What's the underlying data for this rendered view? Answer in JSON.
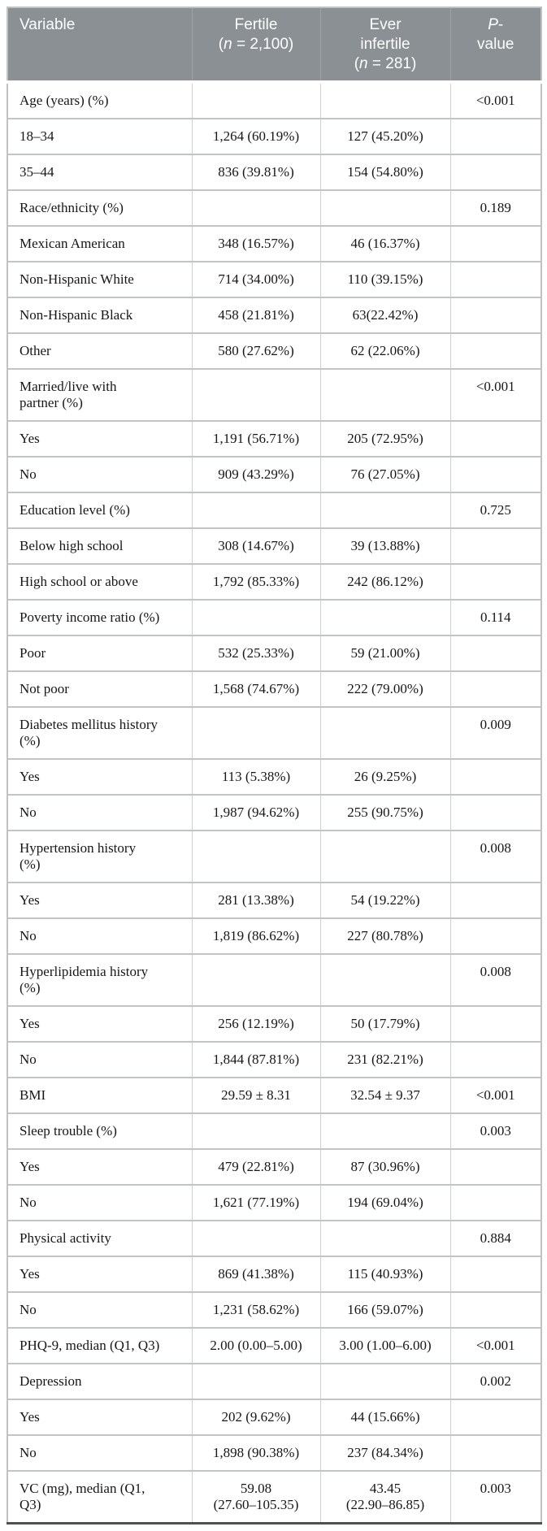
{
  "colors": {
    "header_bg": "#8b9094",
    "header_text": "#ffffff",
    "body_text": "#161616",
    "row_border": "#c2c5c7",
    "col_border": "#ced1d3",
    "outer_border": "#bfc2c4",
    "bottom_rule": "#4d5154"
  },
  "header": {
    "variable": "Variable",
    "fertile": {
      "name": "Fertile",
      "n_open": "(",
      "n_symbol": "n",
      "n_rest": " = 2,100)"
    },
    "ever_infertile": {
      "name_line1": "Ever",
      "name_line2": "infertile",
      "n_open": "(",
      "n_symbol": "n",
      "n_rest": " = 281)"
    },
    "p_value": {
      "p_symbol": "P",
      "hyphen": "-",
      "rest": "value"
    }
  },
  "table": {
    "rows": [
      {
        "variable": "Age (years) (%)",
        "fertile": "",
        "infertile": "",
        "p": "<0.001"
      },
      {
        "variable": "18–34",
        "fertile": "1,264 (60.19%)",
        "infertile": "127 (45.20%)",
        "p": ""
      },
      {
        "variable": "35–44",
        "fertile": "836 (39.81%)",
        "infertile": "154 (54.80%)",
        "p": ""
      },
      {
        "variable": "Race/ethnicity (%)",
        "fertile": "",
        "infertile": "",
        "p": "0.189"
      },
      {
        "variable": "Mexican American",
        "fertile": "348 (16.57%)",
        "infertile": "46 (16.37%)",
        "p": ""
      },
      {
        "variable": "Non-Hispanic White",
        "fertile": "714 (34.00%)",
        "infertile": "110 (39.15%)",
        "p": ""
      },
      {
        "variable": "Non-Hispanic Black",
        "fertile": "458 (21.81%)",
        "infertile": "63(22.42%)",
        "p": ""
      },
      {
        "variable": "Other",
        "fertile": "580 (27.62%)",
        "infertile": "62 (22.06%)",
        "p": ""
      },
      {
        "variable": "Married/live with\npartner (%)",
        "fertile": "",
        "infertile": "",
        "p": "<0.001"
      },
      {
        "variable": "Yes",
        "fertile": "1,191 (56.71%)",
        "infertile": "205 (72.95%)",
        "p": ""
      },
      {
        "variable": "No",
        "fertile": "909 (43.29%)",
        "infertile": "76 (27.05%)",
        "p": ""
      },
      {
        "variable": "Education level (%)",
        "fertile": "",
        "infertile": "",
        "p": "0.725"
      },
      {
        "variable": "Below high school",
        "fertile": "308 (14.67%)",
        "infertile": "39 (13.88%)",
        "p": ""
      },
      {
        "variable": "High school or above",
        "fertile": "1,792 (85.33%)",
        "infertile": "242 (86.12%)",
        "p": ""
      },
      {
        "variable": "Poverty income ratio (%)",
        "fertile": "",
        "infertile": "",
        "p": "0.114"
      },
      {
        "variable": "Poor",
        "fertile": "532 (25.33%)",
        "infertile": "59 (21.00%)",
        "p": ""
      },
      {
        "variable": "Not poor",
        "fertile": "1,568 (74.67%)",
        "infertile": "222 (79.00%)",
        "p": ""
      },
      {
        "variable": "Diabetes mellitus history\n(%)",
        "fertile": "",
        "infertile": "",
        "p": "0.009"
      },
      {
        "variable": "Yes",
        "fertile": "113 (5.38%)",
        "infertile": "26 (9.25%)",
        "p": ""
      },
      {
        "variable": "No",
        "fertile": "1,987 (94.62%)",
        "infertile": "255 (90.75%)",
        "p": ""
      },
      {
        "variable": "Hypertension history\n(%)",
        "fertile": "",
        "infertile": "",
        "p": "0.008"
      },
      {
        "variable": "Yes",
        "fertile": "281 (13.38%)",
        "infertile": "54 (19.22%)",
        "p": ""
      },
      {
        "variable": "No",
        "fertile": "1,819 (86.62%)",
        "infertile": "227 (80.78%)",
        "p": ""
      },
      {
        "variable": "Hyperlipidemia history\n(%)",
        "fertile": "",
        "infertile": "",
        "p": "0.008"
      },
      {
        "variable": "Yes",
        "fertile": "256 (12.19%)",
        "infertile": "50 (17.79%)",
        "p": ""
      },
      {
        "variable": "No",
        "fertile": "1,844 (87.81%)",
        "infertile": "231 (82.21%)",
        "p": ""
      },
      {
        "variable": "BMI",
        "fertile": "29.59 ± 8.31",
        "infertile": "32.54 ± 9.37",
        "p": "<0.001"
      },
      {
        "variable": "Sleep trouble (%)",
        "fertile": "",
        "infertile": "",
        "p": "0.003"
      },
      {
        "variable": "Yes",
        "fertile": "479 (22.81%)",
        "infertile": "87 (30.96%)",
        "p": ""
      },
      {
        "variable": "No",
        "fertile": "1,621 (77.19%)",
        "infertile": "194 (69.04%)",
        "p": ""
      },
      {
        "variable": "Physical activity",
        "fertile": "",
        "infertile": "",
        "p": "0.884"
      },
      {
        "variable": "Yes",
        "fertile": "869 (41.38%)",
        "infertile": "115 (40.93%)",
        "p": ""
      },
      {
        "variable": "No",
        "fertile": "1,231 (58.62%)",
        "infertile": "166 (59.07%)",
        "p": ""
      },
      {
        "variable": "PHQ-9, median (Q1, Q3)",
        "fertile": "2.00 (0.00–5.00)",
        "infertile": "3.00 (1.00–6.00)",
        "p": "<0.001"
      },
      {
        "variable": "Depression",
        "fertile": "",
        "infertile": "",
        "p": "0.002"
      },
      {
        "variable": "Yes",
        "fertile": "202 (9.62%)",
        "infertile": "44 (15.66%)",
        "p": ""
      },
      {
        "variable": "No",
        "fertile": "1,898 (90.38%)",
        "infertile": "237 (84.34%)",
        "p": ""
      },
      {
        "variable": "VC (mg), median (Q1,\nQ3)",
        "fertile": "59.08\n(27.60–105.35)",
        "infertile": "43.45\n(22.90–86.85)",
        "p": "0.003"
      }
    ]
  }
}
